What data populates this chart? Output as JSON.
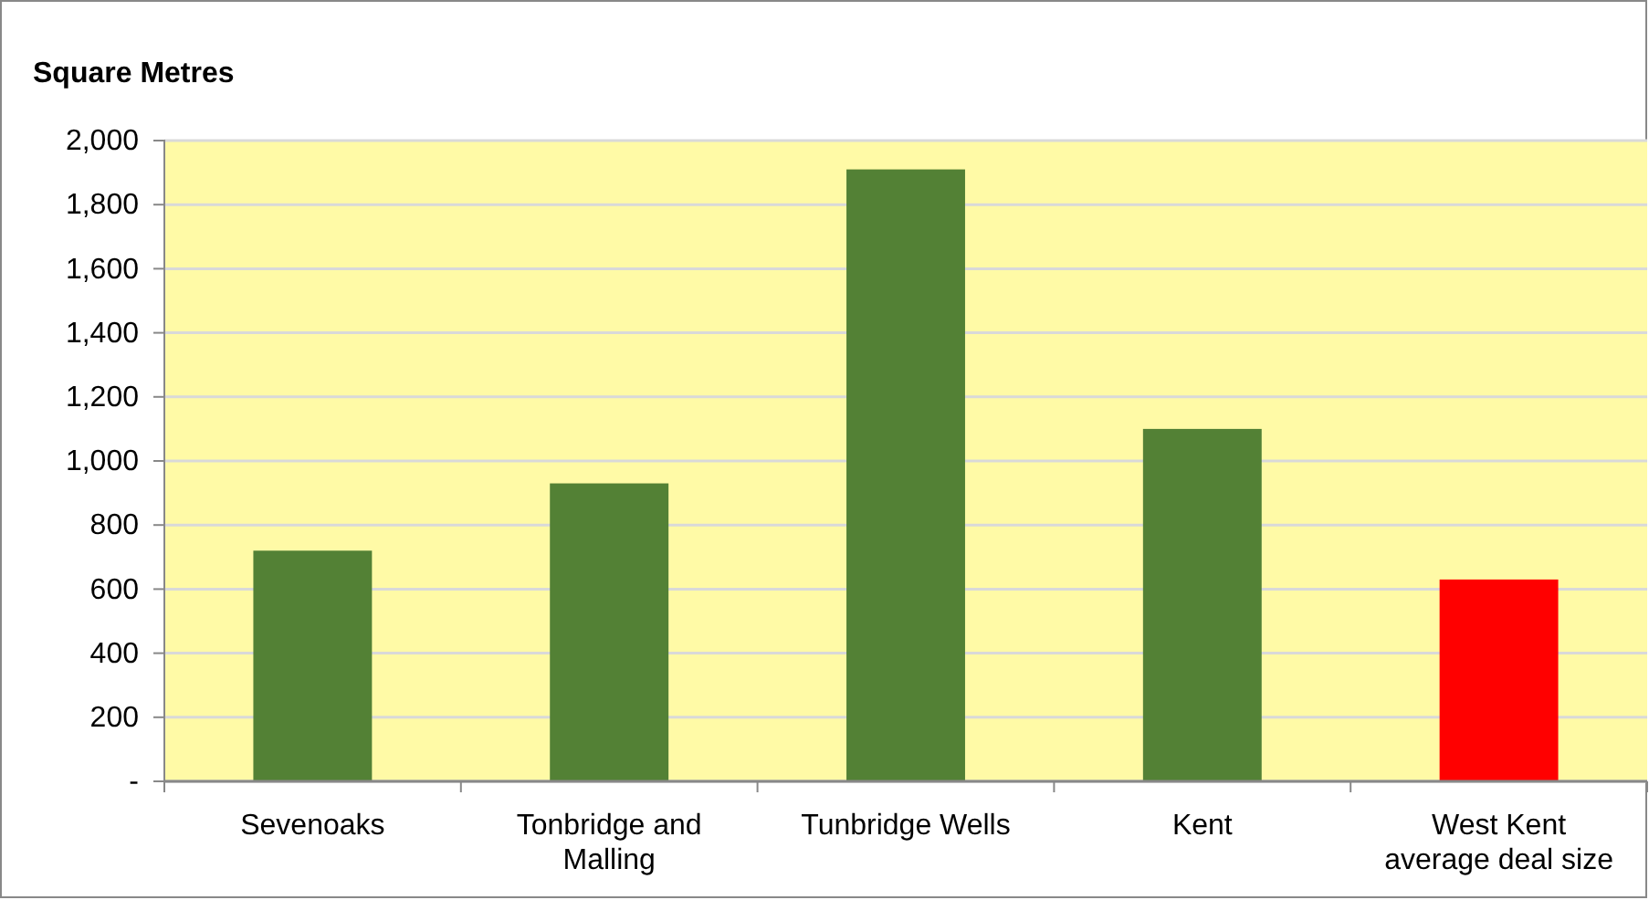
{
  "chart_data": {
    "type": "bar",
    "ylabel": "Square Metres",
    "categories": [
      "Sevenoaks",
      "Tonbridge and Malling",
      "Tunbridge Wells",
      "Kent",
      "West Kent average deal size"
    ],
    "values": [
      720,
      930,
      1910,
      1100,
      630
    ],
    "colors": [
      "#538135",
      "#538135",
      "#538135",
      "#538135",
      "#ff0000"
    ],
    "ylim": [
      0,
      2000
    ],
    "yticks": [
      {
        "value": 0,
        "label": "-"
      },
      200,
      400,
      600,
      800,
      {
        "value": 1000,
        "label": "1,000"
      },
      {
        "value": 1200,
        "label": "1,200"
      },
      {
        "value": 1400,
        "label": "1,400"
      },
      {
        "value": 1600,
        "label": "1,600"
      },
      {
        "value": 1800,
        "label": "1,800"
      },
      {
        "value": 2000,
        "label": "2,000"
      }
    ],
    "grid": "y"
  }
}
